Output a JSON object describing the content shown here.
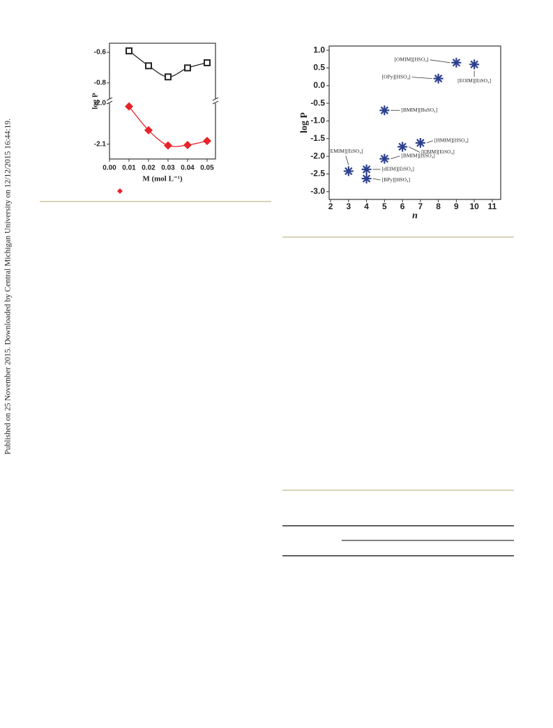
{
  "sidebar": "Published on 25 November 2015. Downloaded by Central Michigan University on 12/12/2015 16:44:19.",
  "chart_data": [
    {
      "type": "line",
      "xlabel": "M (mol L⁻¹)",
      "ylabel": "log P",
      "xlim": [
        0,
        0.0543
      ],
      "xticks": [
        {
          "value": 0,
          "label": "0.00"
        },
        0.01,
        0.02,
        0.03,
        0.04,
        0.05
      ],
      "segments": [
        {
          "ylim": [
            -0.92,
            -0.54
          ],
          "yticks": [
            -0.6,
            -0.8
          ]
        },
        {
          "ylim": [
            -2.136,
            -1.995
          ],
          "yticks": [
            {
              "value": -2.0,
              "label": "-2.0"
            },
            -2.1
          ]
        }
      ],
      "x": [
        0.01,
        0.02,
        0.03,
        0.04,
        0.05
      ],
      "series": [
        {
          "segment": 0,
          "color": "#222222",
          "marker": "square",
          "values": [
            -0.59,
            -0.688,
            -0.761,
            -0.702,
            -0.668
          ]
        },
        {
          "segment": 1,
          "color": "#e8232a",
          "marker": "diamond",
          "values": [
            -2.008,
            -2.066,
            -2.103,
            -2.102,
            -2.092
          ]
        }
      ]
    },
    {
      "type": "scatter",
      "xlabel": "n",
      "ylabel": "log P",
      "color": "#2b3f8c",
      "xlim": [
        1.92,
        11.47
      ],
      "xticks": [
        2,
        3,
        4,
        5,
        6,
        7,
        8,
        9,
        10,
        11
      ],
      "ylim": [
        -3.22,
        1.12
      ],
      "yticks": [
        {
          "value": 1,
          "label": "1.0"
        },
        0.5,
        {
          "value": 0,
          "label": "0.0"
        },
        -0.5,
        {
          "value": -1,
          "label": "-1.0"
        },
        -1.5,
        {
          "value": -2,
          "label": "-2.0"
        },
        -2.5,
        {
          "value": -3,
          "label": "-3.0"
        }
      ],
      "labels": [
        "[OMIM][HSO₄]",
        "[EOIM][EtSO₄]",
        "[OPy][HSO₄]",
        "[BMIM][BuSO₄]",
        "[HMIM][HSO₄]",
        "[EBIM][EtSO₄]",
        "[BMIM][HSO₄]",
        "[EMIM][EtSO₄]",
        "[dEIM][EtSO₄]",
        "[BPy][HSO₄]"
      ],
      "x": [
        9,
        10,
        8,
        5,
        7,
        6,
        5,
        3,
        4,
        4
      ],
      "values": [
        0.65,
        0.6,
        0.2,
        -0.7,
        -1.62,
        -1.73,
        -2.07,
        -2.42,
        -2.37,
        -2.63
      ]
    }
  ]
}
